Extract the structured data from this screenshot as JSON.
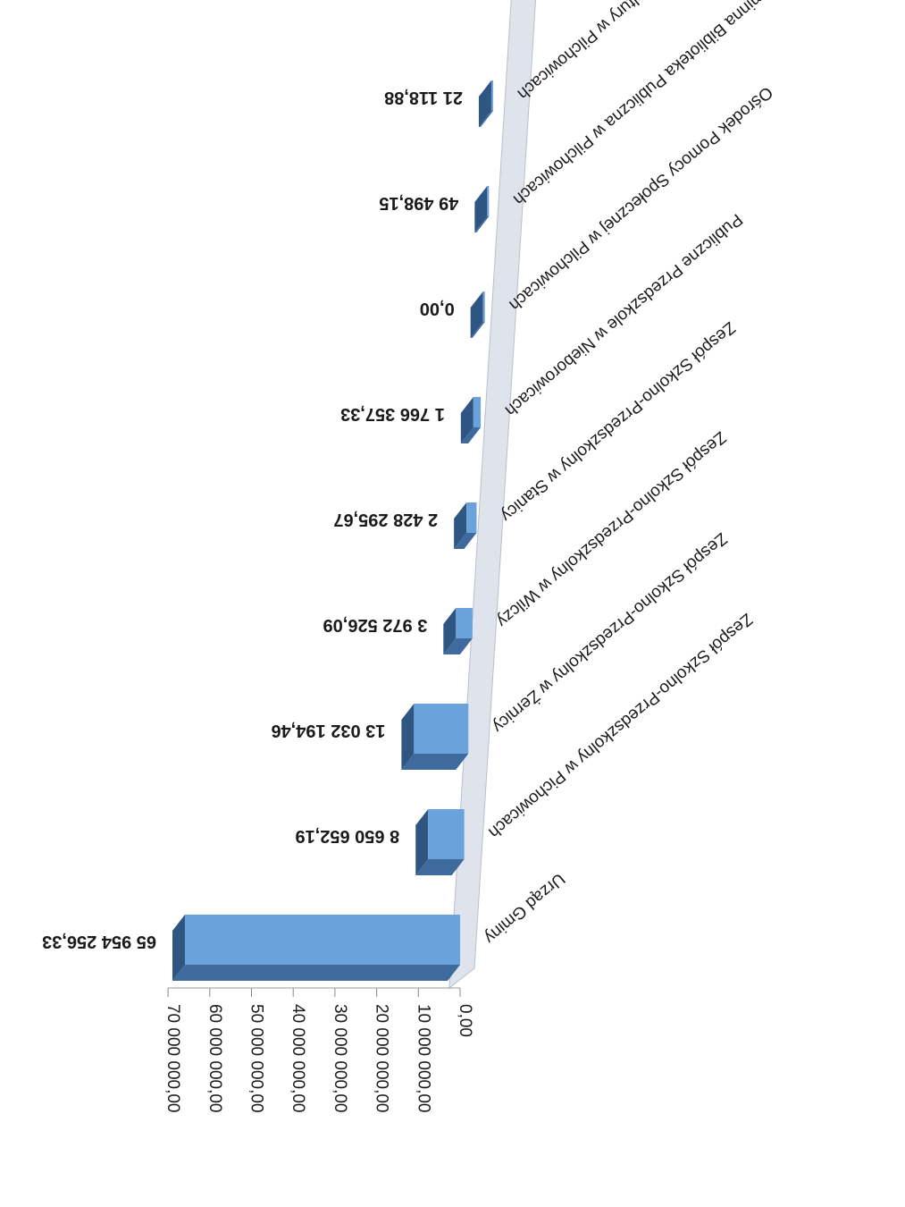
{
  "chart_data": {
    "type": "bar",
    "orientation": "horizontal-3d",
    "rotation": "upside-down",
    "title": "",
    "xlabel": "",
    "ylabel": "",
    "xlim": [
      0,
      70000000
    ],
    "tick_values": [
      0,
      10000000,
      20000000,
      30000000,
      40000000,
      50000000,
      60000000,
      70000000
    ],
    "tick_labels": [
      "0,00",
      "10 000 000,00",
      "20 000 000,00",
      "30 000 000,00",
      "40 000 000,00",
      "50 000 000,00",
      "60 000 000,00",
      "70 000 000,00"
    ],
    "categories": [
      "Urząd Gminy",
      "Zespół Szkolno-Przedszkolny w Pichowicach",
      "Zespół Szkolno-Przedszkolny w Żernicy",
      "Zespół Szkolno-Przedszkolny w Wilczy",
      "Zespół Szkolno-Przedszkolny w Stanicy",
      "Publiczne Przedszkole w Nieborowicach",
      "Ośrodek Pomocy Społecznej w Pilchowicach",
      "Gminna Biblioteka Publiczna w Pilchowicach",
      "Gminny Ośrodek Kultury w Pilchowicach"
    ],
    "values": [
      65954256.33,
      8650652.19,
      13032194.46,
      3972526.09,
      2428295.67,
      1766357.33,
      0.0,
      49498.15,
      21118.88
    ],
    "value_labels": [
      "65 954 256,33",
      "8 650 652,19",
      "13 032 194,46",
      "3 972 526,09",
      "2 428 295,67",
      "1 766 357,33",
      "0,00",
      "49 498,15",
      "21 118,88"
    ],
    "grid": false,
    "legend": "none",
    "colors": {
      "bar_front": "#6aa3dc",
      "bar_top": "#3e6a9e",
      "bar_side": "#2f5582",
      "wall": "#dfe4ec",
      "wall_edge": "#b8bfca"
    }
  }
}
